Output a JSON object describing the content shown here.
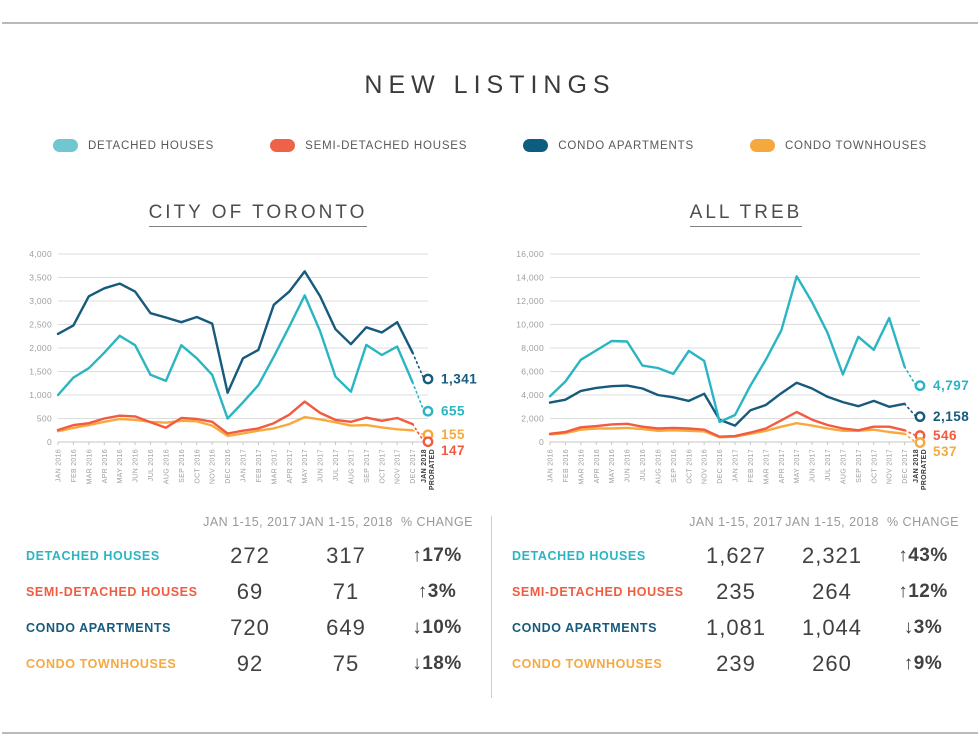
{
  "page": {
    "title": "NEW LISTINGS"
  },
  "legend": [
    {
      "label": "DETACHED HOUSES",
      "color": "#70c7cf"
    },
    {
      "label": "SEMI-DETACHED HOUSES",
      "color": "#ee6347"
    },
    {
      "label": "CONDO APARTMENTS",
      "color": "#0d5d80"
    },
    {
      "label": "CONDO TOWNHOUSES",
      "color": "#f5a83d"
    }
  ],
  "chart_data": [
    {
      "type": "line",
      "title": "CITY OF TORONTO",
      "x": [
        "JAN 2016",
        "FEB 2016",
        "MAR 2016",
        "APR 2016",
        "MAY 2016",
        "JUN 2016",
        "JUL 2016",
        "AUG 2016",
        "SEP 2016",
        "OCT 2016",
        "NOV 2016",
        "DEC 2016",
        "JAN 2017",
        "FEB 2017",
        "MAR 2017",
        "APR 2017",
        "MAY 2017",
        "JUN 2017",
        "JUL 2017",
        "AUG 2017",
        "SEP 2017",
        "OCT 2017",
        "NOV 2017",
        "DEC 2017",
        "JAN 2018 PRORATED"
      ],
      "ylim": [
        0,
        4000
      ],
      "ytick_step": 500,
      "grid": true,
      "legend_position": "top",
      "last_point": "JAN 2018 PRORATED shown as open circle with dotted segment",
      "series": [
        {
          "name": "DETACHED HOUSES",
          "color": "#2ab5c3",
          "end_label": "655",
          "values": [
            1000,
            1370,
            1570,
            1900,
            2260,
            2060,
            1430,
            1300,
            2060,
            1780,
            1430,
            500,
            845,
            1210,
            1815,
            2455,
            3120,
            2360,
            1390,
            1070,
            2065,
            1850,
            2030,
            1270,
            655
          ]
        },
        {
          "name": "SEMI-DETACHED HOUSES",
          "color": "#f15b40",
          "end_label": "147",
          "values": [
            255,
            360,
            400,
            500,
            560,
            545,
            420,
            305,
            510,
            490,
            430,
            180,
            240,
            290,
            400,
            580,
            860,
            620,
            470,
            430,
            520,
            450,
            510,
            380,
            147
          ]
        },
        {
          "name": "CONDO APARTMENTS",
          "color": "#165a7d",
          "end_label": "1,341",
          "values": [
            2300,
            2480,
            3100,
            3270,
            3370,
            3200,
            2740,
            2650,
            2550,
            2660,
            2520,
            1050,
            1780,
            1960,
            2920,
            3200,
            3630,
            3100,
            2400,
            2080,
            2440,
            2330,
            2550,
            1900,
            1341
          ]
        },
        {
          "name": "CONDO TOWNHOUSES",
          "color": "#f7a93e",
          "end_label": "155",
          "values": [
            230,
            300,
            360,
            430,
            490,
            470,
            430,
            410,
            450,
            440,
            350,
            130,
            180,
            240,
            290,
            380,
            530,
            480,
            420,
            350,
            360,
            310,
            270,
            250,
            155
          ]
        }
      ]
    },
    {
      "type": "line",
      "title": "ALL TREB",
      "x": [
        "JAN 2016",
        "FEB 2016",
        "MAR 2016",
        "APR 2016",
        "MAY 2016",
        "JUN 2016",
        "JUL 2016",
        "AUG 2016",
        "SEP 2016",
        "OCT 2016",
        "NOV 2016",
        "DEC 2016",
        "JAN 2017",
        "FEB 2017",
        "MAR 2017",
        "APR 2017",
        "MAY 2017",
        "JUN 2017",
        "JUL 2017",
        "AUG 2017",
        "SEP 2017",
        "OCT 2017",
        "NOV 2017",
        "DEC 2017",
        "JAN 2018 PRORATED"
      ],
      "ylim": [
        0,
        16000
      ],
      "ytick_step": 2000,
      "grid": true,
      "legend_position": "top",
      "last_point": "JAN 2018 PRORATED shown as open circle with dotted segment",
      "series": [
        {
          "name": "DETACHED HOUSES",
          "color": "#2ab5c3",
          "end_label": "4,797",
          "values": [
            3900,
            5150,
            7000,
            7800,
            8600,
            8550,
            6500,
            6300,
            5800,
            7750,
            6900,
            1700,
            2300,
            4800,
            7000,
            9500,
            14100,
            11900,
            9300,
            5750,
            8950,
            7850,
            10550,
            6400,
            4797
          ]
        },
        {
          "name": "SEMI-DETACHED HOUSES",
          "color": "#f15b40",
          "end_label": "546",
          "values": [
            700,
            850,
            1250,
            1350,
            1500,
            1550,
            1300,
            1150,
            1200,
            1150,
            1050,
            450,
            500,
            800,
            1150,
            1850,
            2550,
            1900,
            1450,
            1150,
            1000,
            1300,
            1300,
            1000,
            546
          ]
        },
        {
          "name": "CONDO APARTMENTS",
          "color": "#165a7d",
          "end_label": "2,158",
          "values": [
            3350,
            3600,
            4350,
            4600,
            4750,
            4800,
            4550,
            4000,
            3800,
            3500,
            4100,
            1900,
            1400,
            2700,
            3150,
            4150,
            5050,
            4550,
            3850,
            3400,
            3050,
            3500,
            3000,
            3250,
            2158
          ]
        },
        {
          "name": "CONDO TOWNHOUSES",
          "color": "#f7a93e",
          "end_label": "537",
          "values": [
            650,
            750,
            1050,
            1150,
            1150,
            1200,
            1100,
            950,
            1000,
            950,
            900,
            400,
            450,
            700,
            950,
            1300,
            1600,
            1400,
            1150,
            950,
            950,
            1050,
            850,
            700,
            537
          ]
        }
      ]
    }
  ],
  "tables": [
    {
      "region": "CITY OF TORONTO",
      "headers": [
        "JAN 1-15, 2017",
        "JAN 1-15, 2018",
        "% CHANGE"
      ],
      "rows": [
        {
          "label": "DETACHED HOUSES",
          "color": "#2ab5c3",
          "jan2017": "272",
          "jan2018": "317",
          "change": "↑17%"
        },
        {
          "label": "SEMI-DETACHED HOUSES",
          "color": "#f15b40",
          "jan2017": "69",
          "jan2018": "71",
          "change": "↑3%"
        },
        {
          "label": "CONDO APARTMENTS",
          "color": "#165a7d",
          "jan2017": "720",
          "jan2018": "649",
          "change": "↓10%"
        },
        {
          "label": "CONDO TOWNHOUSES",
          "color": "#f7a93e",
          "jan2017": "92",
          "jan2018": "75",
          "change": "↓18%"
        }
      ]
    },
    {
      "region": "ALL TREB",
      "headers": [
        "JAN 1-15, 2017",
        "JAN 1-15, 2018",
        "% CHANGE"
      ],
      "rows": [
        {
          "label": "DETACHED HOUSES",
          "color": "#2ab5c3",
          "jan2017": "1,627",
          "jan2018": "2,321",
          "change": "↑43%"
        },
        {
          "label": "SEMI-DETACHED HOUSES",
          "color": "#f15b40",
          "jan2017": "235",
          "jan2018": "264",
          "change": "↑12%"
        },
        {
          "label": "CONDO APARTMENTS",
          "color": "#165a7d",
          "jan2017": "1,081",
          "jan2018": "1,044",
          "change": "↓3%"
        },
        {
          "label": "CONDO TOWNHOUSES",
          "color": "#f7a93e",
          "jan2017": "239",
          "jan2018": "260",
          "change": "↑9%"
        }
      ]
    }
  ]
}
